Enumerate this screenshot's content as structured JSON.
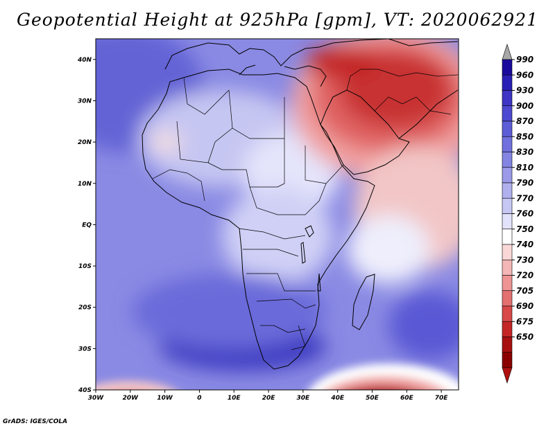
{
  "title": "Geopotential Height at 925hPa [gpm], VT: 2020062921",
  "credit": "GrADS: IGES/COLA",
  "map": {
    "lat_ticks": [
      "40N",
      "30N",
      "20N",
      "10N",
      "EQ",
      "10S",
      "20S",
      "30S",
      "40S"
    ],
    "lon_ticks": [
      "30W",
      "20W",
      "10W",
      "0",
      "10E",
      "20E",
      "30E",
      "40E",
      "50E",
      "60E",
      "70E"
    ],
    "extent": {
      "lon_min": -30,
      "lon_max": 75,
      "lat_min": -40,
      "lat_max": 45
    }
  },
  "colorbar": {
    "levels": [
      "990",
      "960",
      "930",
      "900",
      "870",
      "850",
      "830",
      "810",
      "790",
      "770",
      "760",
      "750",
      "740",
      "730",
      "720",
      "705",
      "690",
      "675",
      "650"
    ],
    "colors": [
      "#1a0a9c",
      "#2a1fb4",
      "#3d35c4",
      "#4d48d0",
      "#5e5dd8",
      "#7070de",
      "#8484e3",
      "#9a9ae9",
      "#b0b0ee",
      "#c7c7f4",
      "#e2e2fa",
      "#ffffff",
      "#fad8d8",
      "#f4b6b6",
      "#ee9494",
      "#e47070",
      "#d84848",
      "#c42626",
      "#a81010",
      "#8a0000"
    ],
    "over_color": "#a8a8a8",
    "under_color": "#b01010"
  }
}
